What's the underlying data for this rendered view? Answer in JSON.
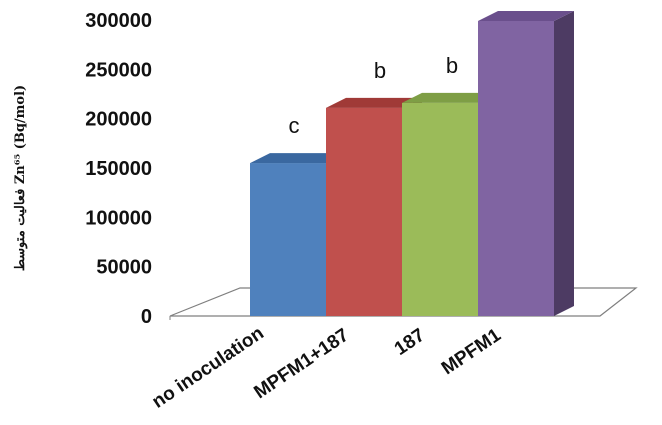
{
  "chart_data": {
    "type": "bar",
    "ylabel": "فعالیت متوسط Zn⁶⁵ (Bq/mol)",
    "categories": [
      "no inoculation",
      "MPFM1+187",
      "187",
      "MPFM1"
    ],
    "values": [
      155000,
      211000,
      216000,
      299000
    ],
    "annotations": [
      "c",
      "b",
      "b",
      ""
    ],
    "ylim": [
      0,
      300000
    ],
    "yticks": [
      0,
      50000,
      100000,
      150000,
      200000,
      250000,
      300000
    ],
    "ytick_labels": [
      "0",
      "50000",
      "100000",
      "150000",
      "200000",
      "250000",
      "300000"
    ],
    "grid": false,
    "legend": "none",
    "colors": [
      {
        "front": "#4f81bd",
        "side": "#2c4d75",
        "top": "#3a68a0"
      },
      {
        "front": "#c0504d",
        "side": "#7c2f2d",
        "top": "#a03a37"
      },
      {
        "front": "#9bbb59",
        "side": "#5f7a32",
        "top": "#7e9e45"
      },
      {
        "front": "#8064a2",
        "side": "#4d3b63",
        "top": "#6a4f8c"
      }
    ]
  }
}
